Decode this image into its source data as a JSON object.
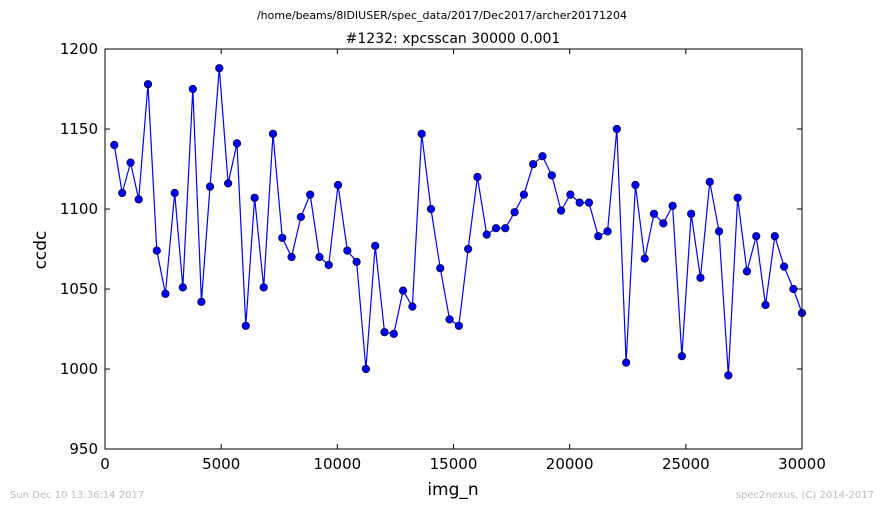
{
  "page": {
    "header_path": "/home/beams/8IDIUSER/spec_data/2017/Dec2017/archer20171204",
    "footer_left": "Sun Dec 10 13:36:14 2017",
    "footer_right": "spec2nexus, (C) 2014-2017"
  },
  "chart_data": {
    "type": "line",
    "title": "#1232: xpcsscan 30000 0.001",
    "xlabel": "img_n",
    "ylabel": "ccdc",
    "xlim": [
      0,
      30000
    ],
    "ylim": [
      950,
      1200
    ],
    "xticks": [
      0,
      5000,
      10000,
      15000,
      20000,
      25000,
      30000
    ],
    "yticks": [
      950,
      1000,
      1050,
      1100,
      1150,
      1200
    ],
    "grid": false,
    "marker": "circle",
    "colors": {
      "series": "#0000ff",
      "marker_edge": "#000000",
      "axes": "#000000",
      "footer": "#bbbbbb"
    },
    "series": [
      {
        "x": [
          400,
          740,
          1100,
          1450,
          1850,
          2230,
          2600,
          3000,
          3350,
          3780,
          4150,
          4520,
          4920,
          5300,
          5680,
          6060,
          6440,
          6830,
          7230,
          7630,
          8030,
          8430,
          8830,
          9230,
          9630,
          10030,
          10430,
          10830,
          11230,
          11630,
          12030,
          12430,
          12830,
          13230,
          13630,
          14030,
          14430,
          14830,
          15230,
          15630,
          16030,
          16430,
          16830,
          17230,
          17630,
          18030,
          18430,
          18830,
          19230,
          19630,
          20030,
          20430,
          20830,
          21230,
          21630,
          22030,
          22430,
          22830,
          23230,
          23630,
          24030,
          24430,
          24830,
          25230,
          25630,
          26030,
          26430,
          26830,
          27230,
          27630,
          28030,
          28430,
          28830,
          29230,
          29630,
          30000
        ],
        "y": [
          1140,
          1110,
          1129,
          1106,
          1178,
          1074,
          1047,
          1110,
          1051,
          1175,
          1042,
          1114,
          1188,
          1116,
          1141,
          1027,
          1107,
          1051,
          1147,
          1082,
          1070,
          1095,
          1109,
          1070,
          1065,
          1115,
          1074,
          1067,
          1000,
          1077,
          1023,
          1022,
          1049,
          1039,
          1147,
          1100,
          1063,
          1031,
          1027,
          1075,
          1120,
          1084,
          1088,
          1088,
          1098,
          1109,
          1128,
          1133,
          1121,
          1099,
          1109,
          1104,
          1104,
          1083,
          1086,
          1150,
          1004,
          1115,
          1069,
          1097,
          1091,
          1102,
          1008,
          1097,
          1057,
          1117,
          1086,
          996,
          1107,
          1061,
          1083,
          1040,
          1083,
          1064,
          1050,
          1035
        ]
      }
    ]
  }
}
